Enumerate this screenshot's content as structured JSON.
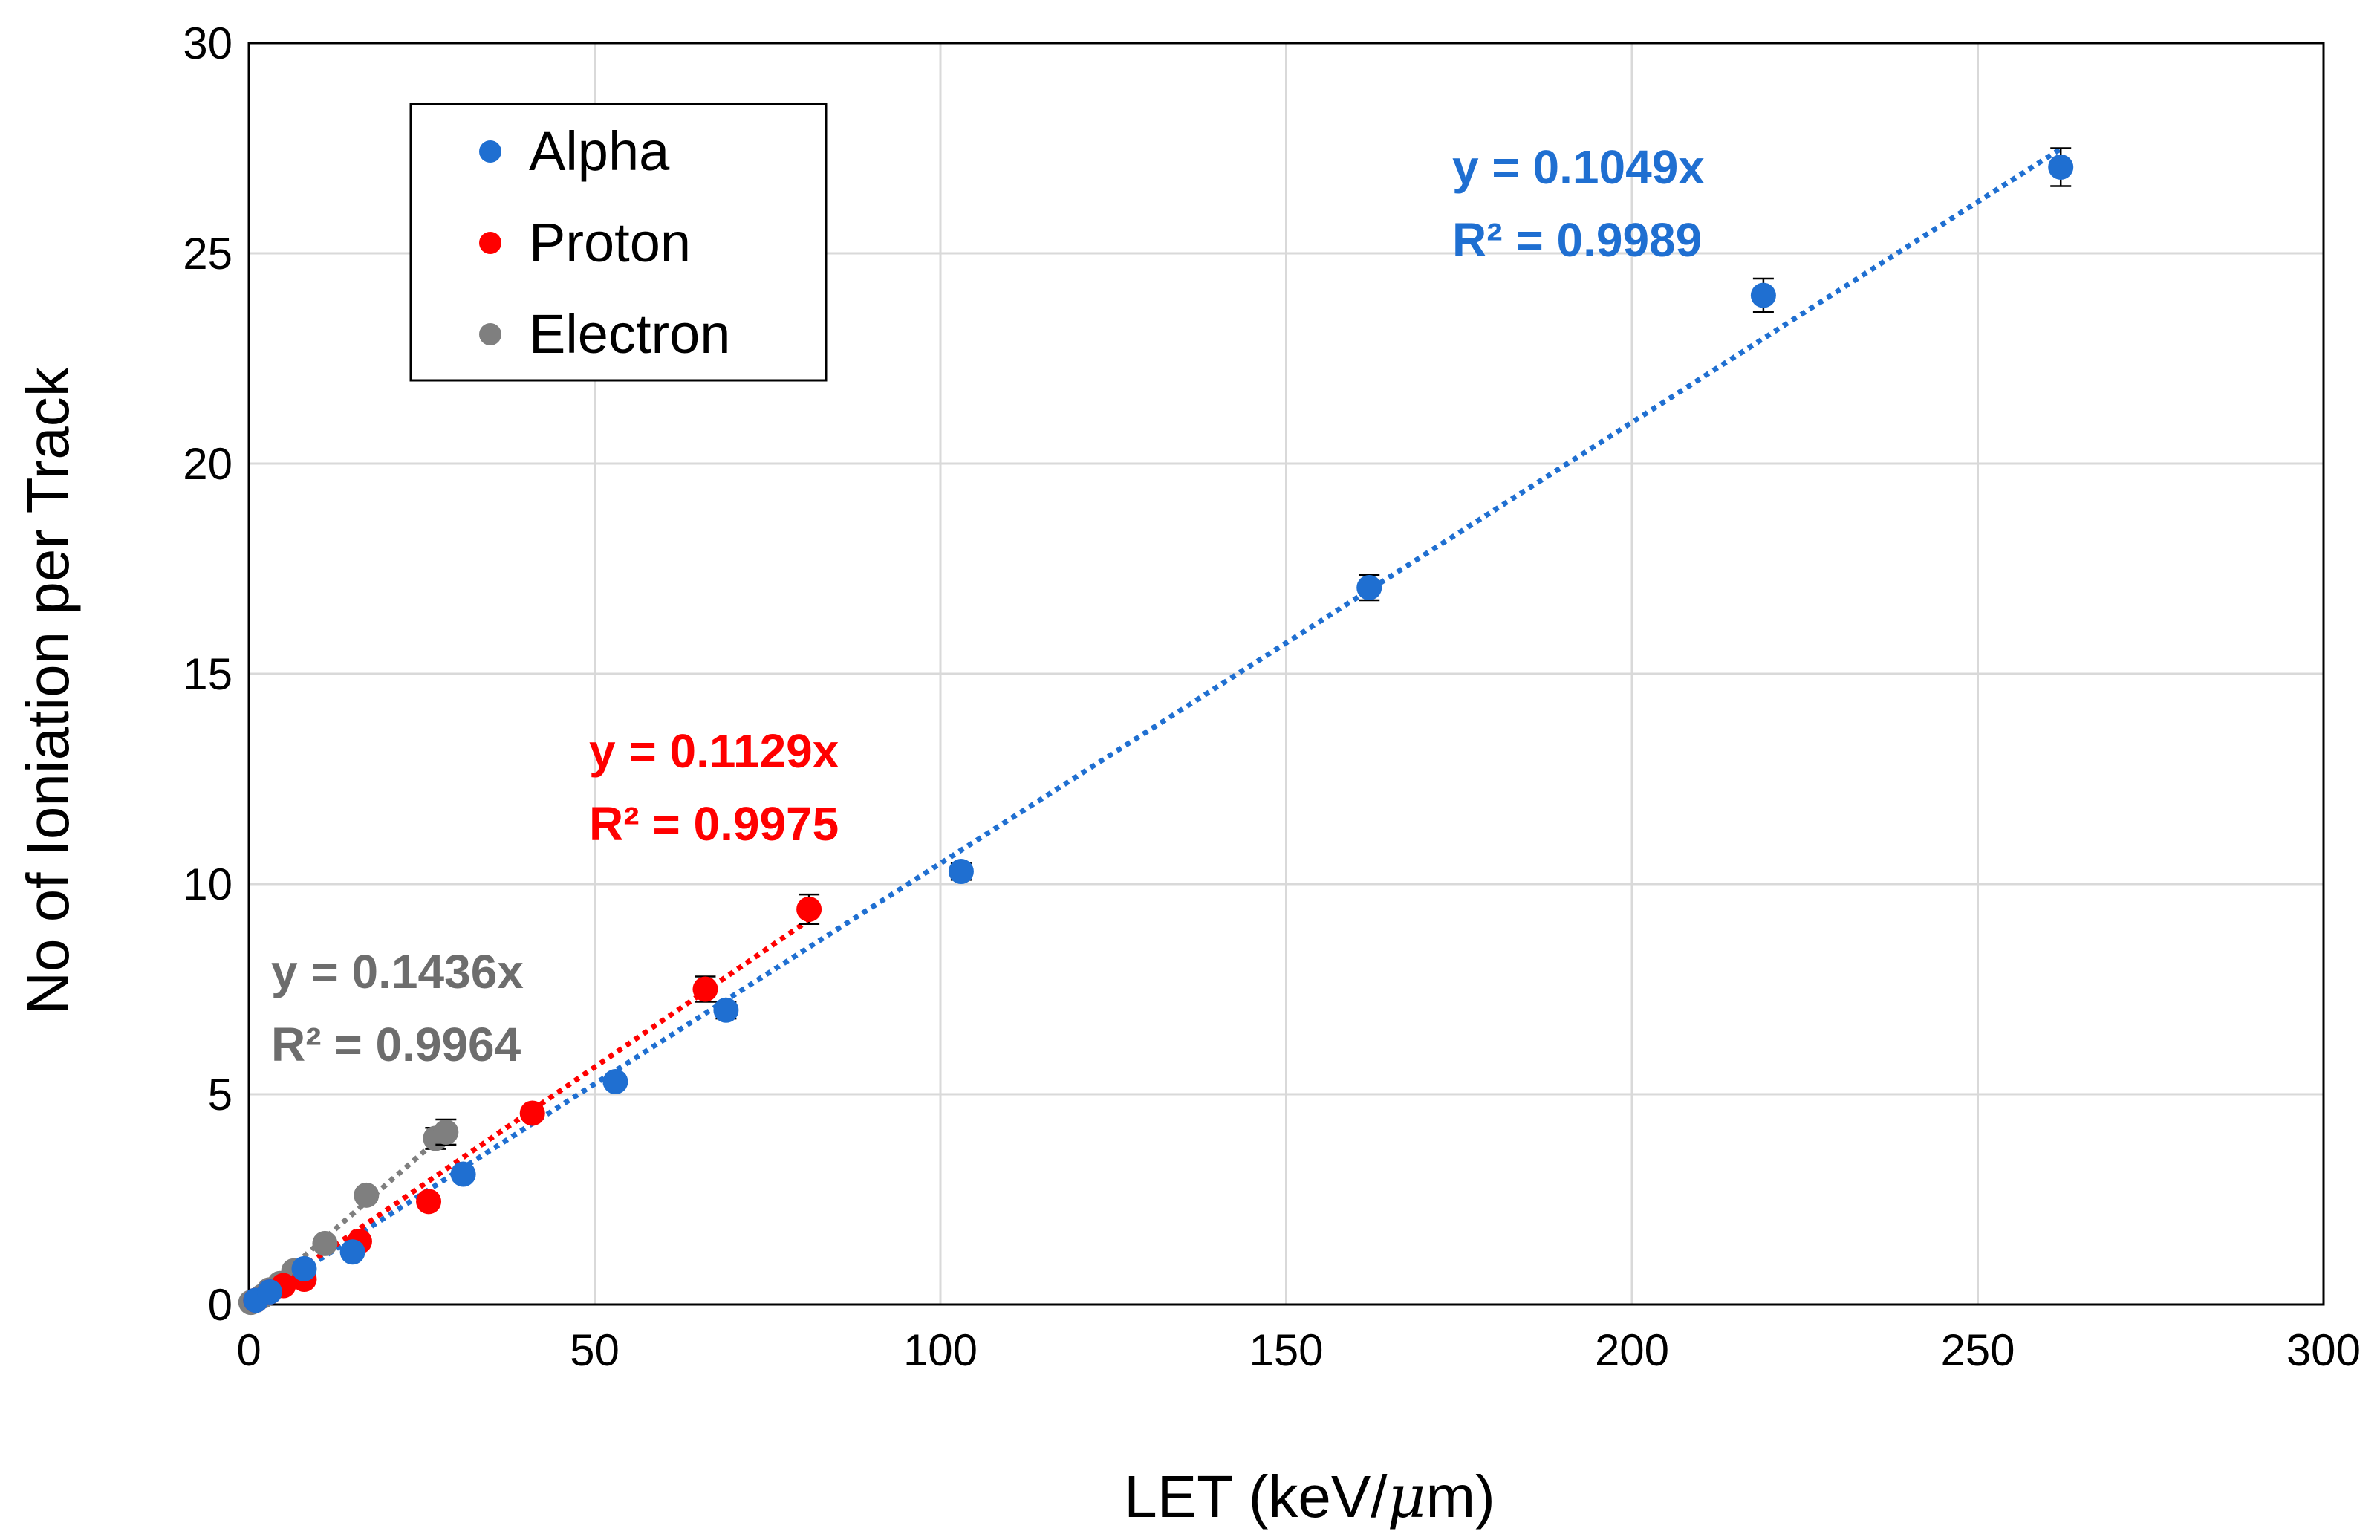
{
  "chart_data": {
    "type": "scatter",
    "xlabel": "LET (keV/",
    "xlabel_mu": "μ",
    "xlabel_end": "m)",
    "ylabel": "No of Ioniation per Track",
    "xlim": [
      0,
      300
    ],
    "ylim": [
      0,
      30
    ],
    "x_ticks": [
      "0",
      "50",
      "100",
      "150",
      "200",
      "250",
      "300"
    ],
    "y_ticks": [
      "0",
      "5",
      "10",
      "15",
      "20",
      "25",
      "30"
    ],
    "grid": true,
    "legend_position": "top-left",
    "series": [
      {
        "name": "Alpha",
        "color": "#1f6fd1",
        "points": [
          {
            "x": 1.0,
            "y": 0.1,
            "err": 0.05
          },
          {
            "x": 3.0,
            "y": 0.3,
            "err": 0.05
          },
          {
            "x": 8.0,
            "y": 0.85,
            "err": 0.1
          },
          {
            "x": 15.0,
            "y": 1.25,
            "err": 0.1
          },
          {
            "x": 31.0,
            "y": 3.1,
            "err": 0.15
          },
          {
            "x": 53.0,
            "y": 5.3,
            "err": 0.15
          },
          {
            "x": 69.0,
            "y": 7.0,
            "err": 0.2
          },
          {
            "x": 103.0,
            "y": 10.3,
            "err": 0.2
          },
          {
            "x": 162.0,
            "y": 17.05,
            "err": 0.3
          },
          {
            "x": 219.0,
            "y": 24.0,
            "err": 0.4
          },
          {
            "x": 262.0,
            "y": 27.05,
            "err": 0.45
          }
        ],
        "fit": {
          "slope": 0.1049,
          "x_end": 262,
          "equation": "y = 0.1049x",
          "r2": "R² = 0.9989"
        }
      },
      {
        "name": "Proton",
        "color": "#ff0000",
        "points": [
          {
            "x": 1.0,
            "y": 0.1,
            "err": 0.05
          },
          {
            "x": 3.0,
            "y": 0.3,
            "err": 0.05
          },
          {
            "x": 5.0,
            "y": 0.45,
            "err": 0.05
          },
          {
            "x": 8.0,
            "y": 0.6,
            "err": 0.1
          },
          {
            "x": 16.0,
            "y": 1.5,
            "err": 0.1
          },
          {
            "x": 26.0,
            "y": 2.45,
            "err": 0.15
          },
          {
            "x": 41.0,
            "y": 4.55,
            "err": 0.15
          },
          {
            "x": 66.0,
            "y": 7.5,
            "err": 0.3
          },
          {
            "x": 81.0,
            "y": 9.4,
            "err": 0.35
          }
        ],
        "fit": {
          "slope": 0.1129,
          "x_end": 82,
          "equation": "y = 0.1129x",
          "r2": "R² = 0.9975"
        }
      },
      {
        "name": "Electron",
        "color": "#7f7f7f",
        "points": [
          {
            "x": 0.3,
            "y": 0.05,
            "err": 0.03
          },
          {
            "x": 1.0,
            "y": 0.1,
            "err": 0.03
          },
          {
            "x": 2.0,
            "y": 0.2,
            "err": 0.05
          },
          {
            "x": 3.0,
            "y": 0.35,
            "err": 0.05
          },
          {
            "x": 4.5,
            "y": 0.5,
            "err": 0.05
          },
          {
            "x": 6.5,
            "y": 0.8,
            "err": 0.1
          },
          {
            "x": 11.0,
            "y": 1.45,
            "err": 0.1
          },
          {
            "x": 17.0,
            "y": 2.6,
            "err": 0.15
          },
          {
            "x": 27.0,
            "y": 3.95,
            "err": 0.25
          },
          {
            "x": 28.5,
            "y": 4.1,
            "err": 0.3
          }
        ],
        "fit": {
          "slope": 0.1436,
          "x_end": 29,
          "equation": "y = 0.1436x",
          "r2": "R² = 0.9964"
        }
      }
    ]
  }
}
